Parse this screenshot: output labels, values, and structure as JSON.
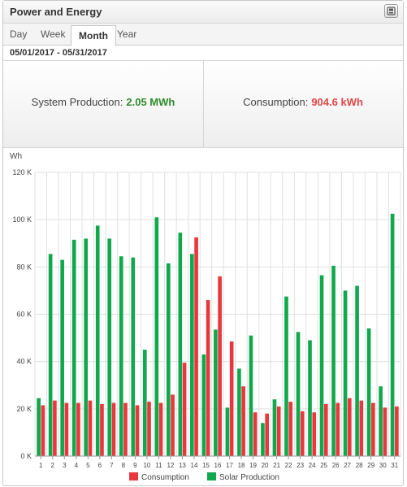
{
  "header": {
    "title": "Power and Energy",
    "export_icon": "export-icon"
  },
  "tabs": [
    {
      "label": "Day",
      "active": false
    },
    {
      "label": "Week",
      "active": false
    },
    {
      "label": "Month",
      "active": true
    },
    {
      "label": "Year",
      "active": false
    }
  ],
  "date_range": "05/01/2017 - 05/31/2017",
  "summary": {
    "production_label": "System Production:",
    "production_value": "2.05 MWh",
    "consumption_label": "Consumption:",
    "consumption_value": "904.6 kWh"
  },
  "colors": {
    "consumption": "#e8383d",
    "production": "#11a84d",
    "grid": "#e0e0e0",
    "axis": "#9a9a9a"
  },
  "chart_data": {
    "type": "bar",
    "title": "",
    "ylabel": "Wh",
    "xlabel": "",
    "ylim": [
      0,
      120000
    ],
    "y_ticks": [
      "0 K",
      "20 K",
      "40 K",
      "60 K",
      "80 K",
      "100 K",
      "120 K"
    ],
    "categories": [
      "1",
      "2",
      "3",
      "4",
      "5",
      "6",
      "7",
      "8",
      "9",
      "10",
      "11",
      "12",
      "13",
      "14",
      "15",
      "16",
      "17",
      "18",
      "19",
      "20",
      "21",
      "22",
      "23",
      "24",
      "25",
      "26",
      "27",
      "28",
      "29",
      "30",
      "31"
    ],
    "grid": true,
    "legend_position": "bottom",
    "series": [
      {
        "name": "Solar Production",
        "color": "#11a84d",
        "values": [
          24500,
          85500,
          83000,
          91500,
          92000,
          97500,
          92000,
          84500,
          84000,
          45000,
          101000,
          81500,
          94500,
          85500,
          43000,
          53500,
          20500,
          37000,
          51000,
          14000,
          24000,
          67500,
          52500,
          49000,
          76500,
          80500,
          70000,
          72000,
          54000,
          29500,
          102500
        ]
      },
      {
        "name": "Consumption",
        "color": "#e8383d",
        "values": [
          21500,
          23500,
          22500,
          22500,
          23500,
          22000,
          22500,
          22500,
          21500,
          23000,
          22500,
          26000,
          39500,
          92500,
          66000,
          76000,
          48500,
          29500,
          18500,
          18000,
          21000,
          23000,
          19000,
          18500,
          22000,
          22500,
          24500,
          23500,
          22500,
          20500,
          21000
        ]
      }
    ],
    "legend": [
      "Consumption",
      "Solar Production"
    ]
  }
}
